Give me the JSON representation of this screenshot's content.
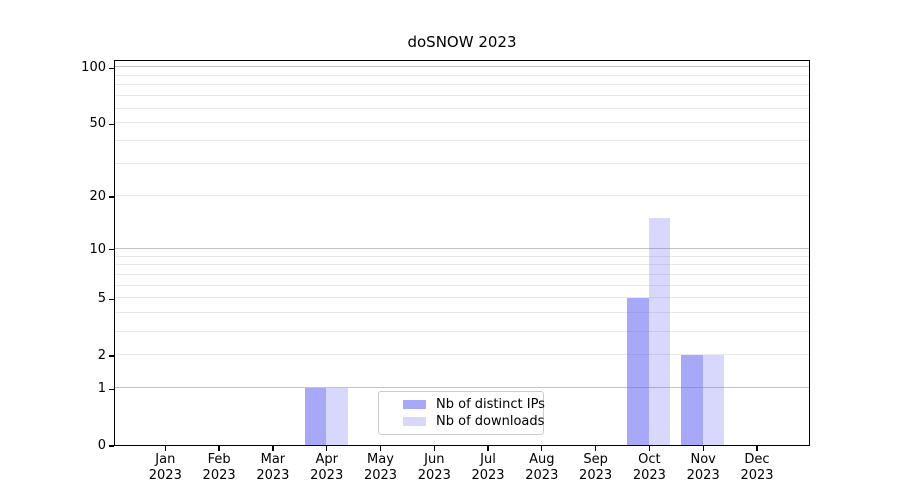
{
  "figure": {
    "title": "doSNOW 2023"
  },
  "colors": {
    "background": "#ffffff",
    "spine": "#000000",
    "grid_major": "#c3c3c3",
    "grid_minor": "#e8e8e8",
    "tick_text": "#000000",
    "legend_border": "#cccccc"
  },
  "chart_data": {
    "type": "bar",
    "title": "doSNOW 2023",
    "categories": [
      "Jan 2023",
      "Feb 2023",
      "Mar 2023",
      "Apr 2023",
      "May 2023",
      "Jun 2023",
      "Jul 2023",
      "Aug 2023",
      "Sep 2023",
      "Oct 2023",
      "Nov 2023",
      "Dec 2023"
    ],
    "series": [
      {
        "name": "Nb of distinct IPs",
        "color": "rgba(100,100,245,0.56)",
        "solid_color": "#a8a8f8",
        "values": [
          0,
          0,
          0,
          1,
          0,
          0,
          0,
          0,
          0,
          5,
          2,
          0
        ]
      },
      {
        "name": "Nb of downloads",
        "color": "rgba(100,100,245,0.25)",
        "solid_color": "#d8d8fb",
        "values": [
          0,
          0,
          0,
          1,
          0,
          0,
          0,
          0,
          0,
          15,
          2,
          0
        ]
      }
    ],
    "xlabel": "",
    "ylabel": "",
    "yscale": "log1p",
    "yticks": [
      0,
      1,
      2,
      5,
      10,
      20,
      50,
      100
    ],
    "emphasized_gridlines": [
      1,
      10,
      100
    ],
    "minor_gridlines": [
      3,
      4,
      6,
      7,
      8,
      9,
      30,
      40,
      60,
      70,
      80,
      90
    ],
    "ylim": [
      0,
      112
    ],
    "grid": "horizontal",
    "legend_position": "lower center"
  }
}
